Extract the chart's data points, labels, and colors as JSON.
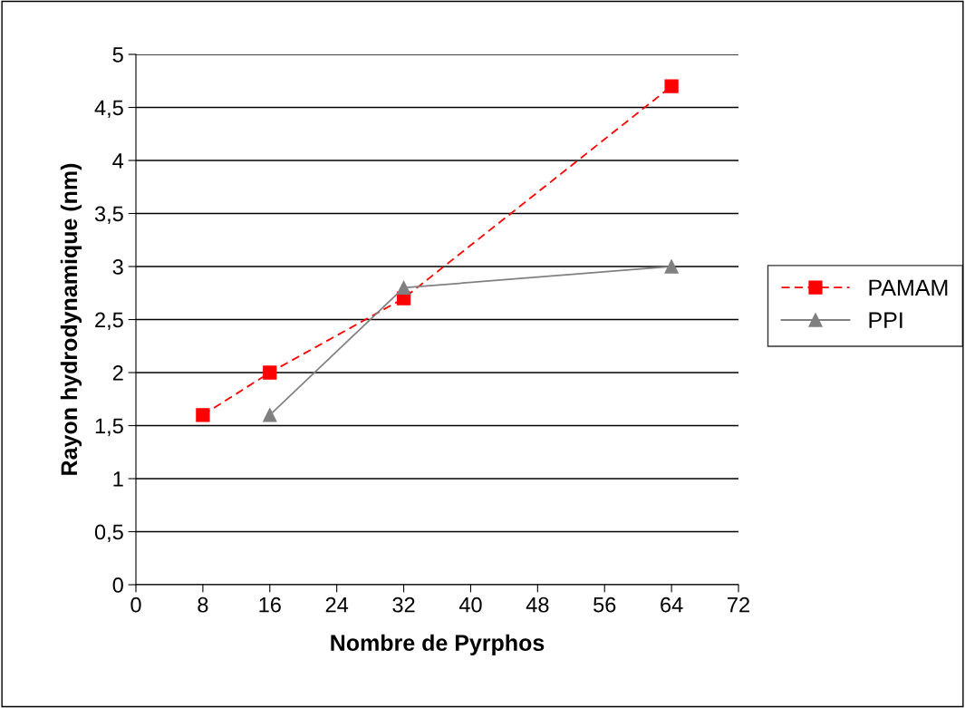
{
  "chart_data": {
    "type": "line",
    "xlabel": "Nombre de Pyrphos",
    "ylabel": "Rayon hydrodynamique (nm)",
    "series": [
      {
        "name": "PAMAM",
        "color": "#ff0000",
        "x": [
          8,
          16,
          32,
          64
        ],
        "values": [
          1.6,
          2.0,
          2.7,
          4.7
        ],
        "marker": "square",
        "line_style": "dashed"
      },
      {
        "name": "PPI",
        "color": "#808080",
        "x": [
          16,
          32,
          64
        ],
        "values": [
          1.6,
          2.8,
          3.0
        ],
        "marker": "triangle",
        "line_style": "solid"
      }
    ],
    "xlim": [
      0,
      72
    ],
    "xticks": [
      0,
      8,
      16,
      24,
      32,
      40,
      48,
      56,
      64,
      72
    ],
    "ylim": [
      0,
      5
    ],
    "yticks": [
      0,
      {
        "value": 0.5,
        "label": "0,5"
      },
      1,
      {
        "value": 1.5,
        "label": "1,5"
      },
      2,
      {
        "value": 2.5,
        "label": "2,5"
      },
      3,
      {
        "value": 3.5,
        "label": "3,5"
      },
      4,
      {
        "value": 4.5,
        "label": "4,5"
      },
      5
    ],
    "grid": "y",
    "legend": "right"
  }
}
